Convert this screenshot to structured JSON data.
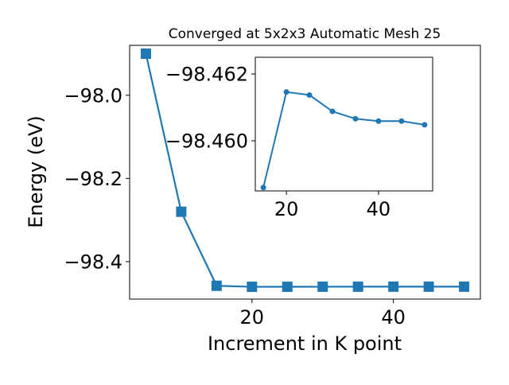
{
  "chart_data": [
    {
      "type": "line",
      "title": "Converged at 5x2x3 Automatic Mesh 25",
      "xlabel": "Increment in K point",
      "ylabel": "Energy (eV)",
      "xlim": [
        2.7,
        52.3
      ],
      "ylim": [
        -98.49,
        -97.88
      ],
      "xticks": [
        20,
        40
      ],
      "xtick_labels": [
        "20",
        "40"
      ],
      "yticks": [
        -98.0,
        -98.2,
        -98.4
      ],
      "ytick_labels": [
        "−98.0",
        "−98.2",
        "−98.4"
      ],
      "grid": false,
      "marker": "square",
      "color": "#1f77b4",
      "series": [
        {
          "x": [
            5,
            10,
            15,
            20,
            25,
            30,
            35,
            40,
            45,
            50
          ],
          "y": [
            -97.9,
            -98.28,
            -98.458,
            -98.4605,
            -98.4604,
            -98.46025,
            -98.46015,
            -98.46012,
            -98.46012,
            -98.4601
          ]
        }
      ]
    },
    {
      "type": "line",
      "title": "",
      "xlabel": "",
      "ylabel": "",
      "xlim": [
        13.25,
        51.75
      ],
      "ylim": [
        -98.4585,
        -98.4625
      ],
      "xticks": [
        20,
        40
      ],
      "xtick_labels": [
        "20",
        "40"
      ],
      "yticks": [
        -98.462,
        -98.46
      ],
      "ytick_labels": [
        "−98.462",
        "−98.460"
      ],
      "grid": false,
      "marker": "circle",
      "color": "#1f77b4",
      "series": [
        {
          "x": [
            15,
            20,
            25,
            30,
            35,
            40,
            45,
            50
          ],
          "y": [
            -98.4586,
            -98.46146,
            -98.46137,
            -98.46088,
            -98.46066,
            -98.46059,
            -98.46059,
            -98.46048
          ]
        }
      ]
    }
  ]
}
